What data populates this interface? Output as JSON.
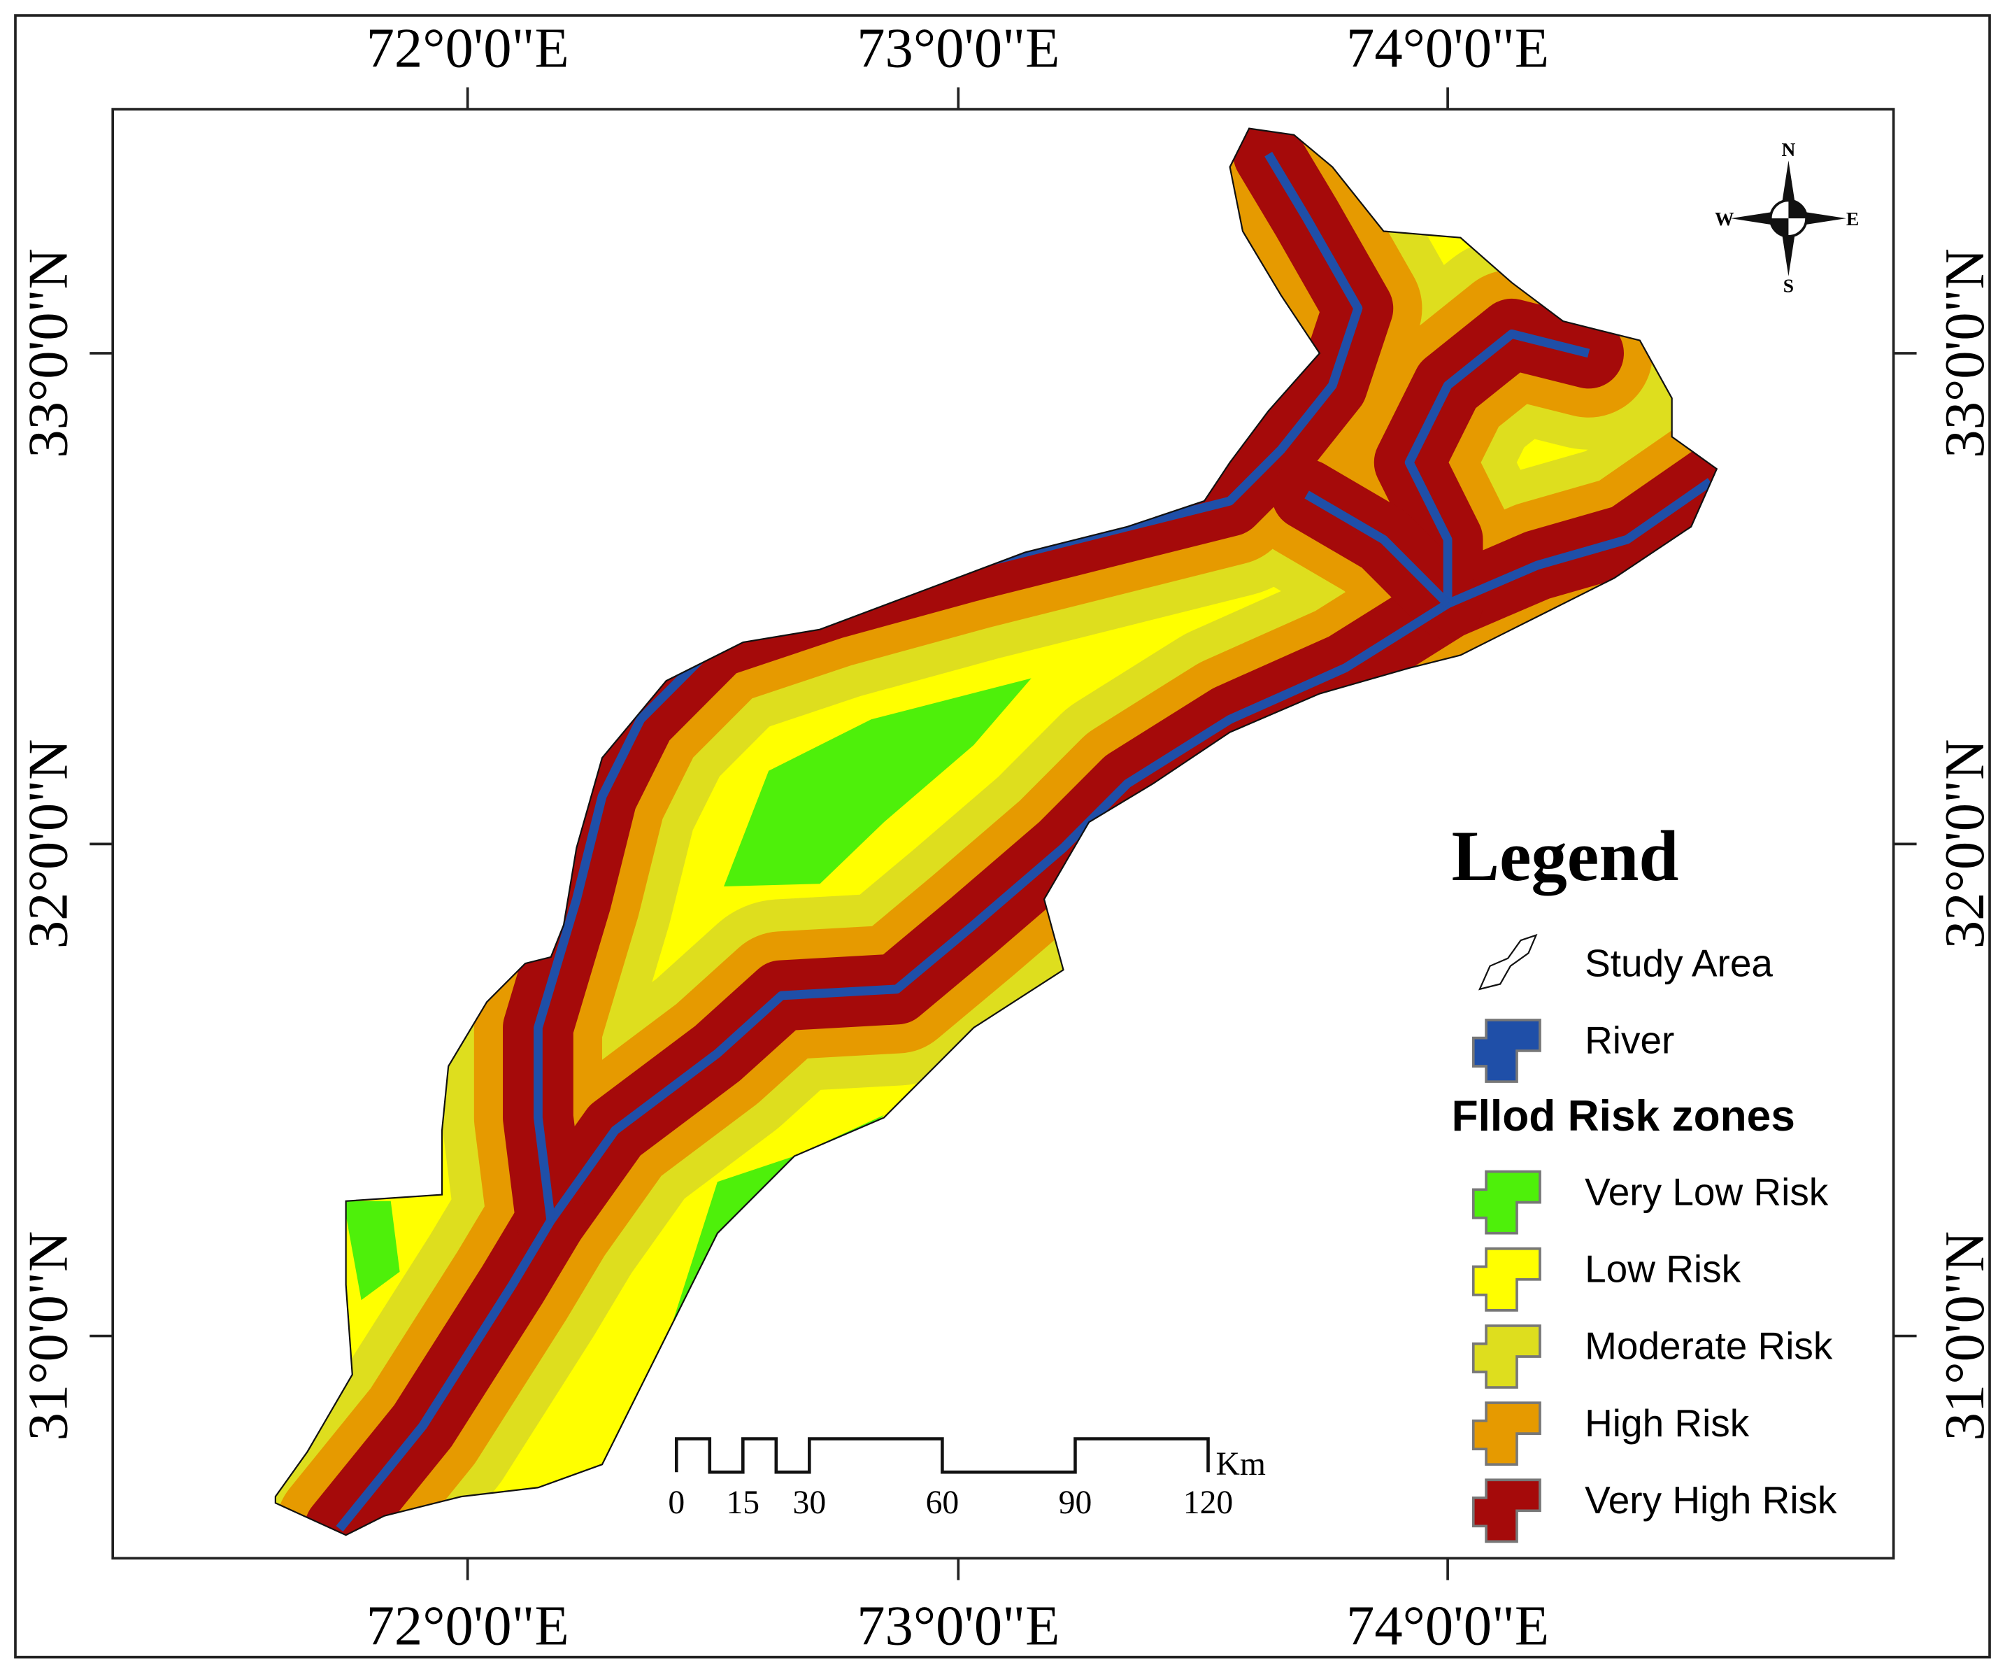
{
  "map": {
    "top_labels": [
      "72°0'0\"E",
      "73°0'0\"E",
      "74°0'0\"E"
    ],
    "bottom_labels": [
      "72°0'0\"E",
      "73°0'0\"E",
      "74°0'0\"E"
    ],
    "left_labels": [
      "33°0'0\"N",
      "32°0'0\"N",
      "31°0'0\"N"
    ],
    "right_labels": [
      "33°0'0\"N",
      "32°0'0\"N",
      "31°0'0\"N"
    ],
    "compass": {
      "n": "N",
      "e": "E",
      "s": "S",
      "w": "W"
    },
    "legend": {
      "title": "Legend",
      "items": [
        {
          "label": "Study Area"
        },
        {
          "label": "River",
          "color": "#1f4fa8"
        }
      ],
      "section": "Fllod Risk zones",
      "zones": [
        {
          "label": "Very Low Risk",
          "color": "#4ef00a"
        },
        {
          "label": "Low Risk",
          "color": "#ffff00"
        },
        {
          "label": "Moderate Risk",
          "color": "#dede1e"
        },
        {
          "label": "High Risk",
          "color": "#e69a00"
        },
        {
          "label": "Very High Risk",
          "color": "#a50a0a"
        }
      ]
    },
    "scale_bar": {
      "ticks": [
        0,
        15,
        30,
        60,
        90,
        120
      ],
      "unit": "Km"
    }
  }
}
